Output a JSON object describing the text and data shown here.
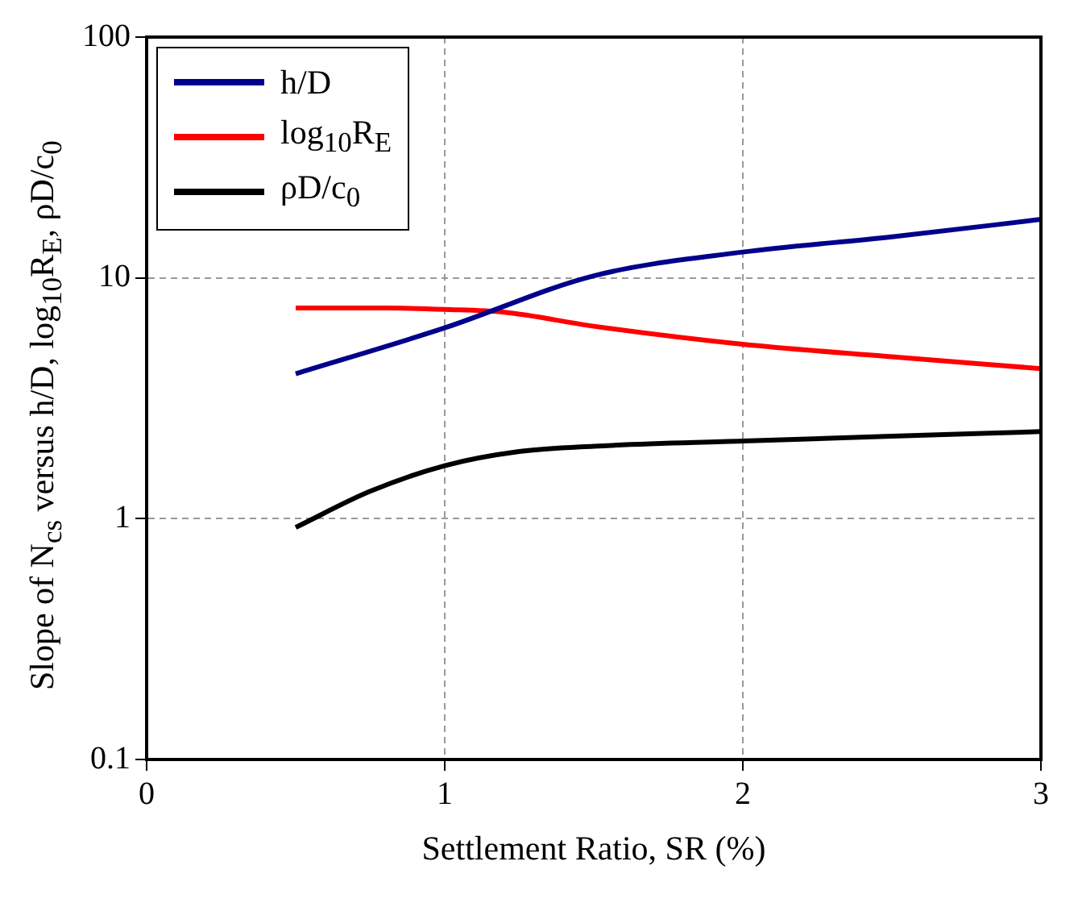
{
  "chart_data": {
    "type": "line",
    "xlabel": "Settlement Ratio, SR (%)",
    "ylabel": "Slope of N$_{cs}$ versus h/D, log$_{10}$R$_{E}$, ρD/c$_{0}$",
    "xlim": [
      0,
      3
    ],
    "xticks": [
      0,
      1,
      2,
      3
    ],
    "ylim": [
      0.1,
      100
    ],
    "yticks": [
      0.1,
      1,
      10,
      100
    ],
    "log": "y",
    "grid": true,
    "legend": "top left",
    "line_style": "solid",
    "marker": "none",
    "series": [
      {
        "name": "h/D",
        "color": "#00008b",
        "x": [
          0.5,
          1,
          1.5,
          2,
          2.5,
          3
        ],
        "values": [
          4.0,
          6.2,
          10.2,
          12.8,
          14.8,
          17.5
        ]
      },
      {
        "name": "log$_{10}$R$_{E}$",
        "color": "#ff0000",
        "x": [
          0.5,
          0.8,
          1,
          1.2,
          1.5,
          2,
          2.5,
          3
        ],
        "values": [
          7.5,
          7.5,
          7.4,
          7.2,
          6.3,
          5.3,
          4.7,
          4.2
        ]
      },
      {
        "name": "ρD/c$_{0}$",
        "color": "#000000",
        "x": [
          0.5,
          0.75,
          1,
          1.25,
          1.5,
          2,
          2.5,
          3
        ],
        "values": [
          0.92,
          1.3,
          1.66,
          1.9,
          2.0,
          2.1,
          2.2,
          2.3
        ]
      }
    ]
  }
}
